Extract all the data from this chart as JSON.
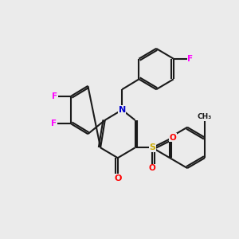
{
  "bg_color": "#ebebeb",
  "bond_color": "#1a1a1a",
  "bond_lw": 1.5,
  "atom_colors": {
    "F": "#ff00ff",
    "N": "#0000cc",
    "O": "#ff0000",
    "S": "#ccaa00",
    "C": "#1a1a1a"
  },
  "font_size": 7.5
}
